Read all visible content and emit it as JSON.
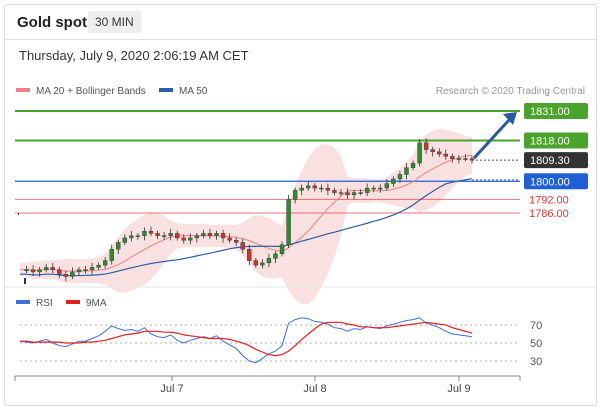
{
  "header": {
    "title": "Gold spot",
    "timeframe": "30 MIN"
  },
  "timestamp": "Thursday, July 9, 2020 2:06:19 AM CET",
  "chart_data": [
    {
      "type": "candlestick",
      "legend": [
        {
          "label": "MA 20 + Bollinger Bands",
          "color": "#f08080"
        },
        {
          "label": "MA 50",
          "color": "#2b5ea7"
        }
      ],
      "attribution": "Research © 2020 Trading Central",
      "levels": [
        {
          "label": "1831.00",
          "value": 1831.0,
          "color": "#4aa32a",
          "kind": "resistance"
        },
        {
          "label": "1818.00",
          "value": 1818.0,
          "color": "#4aa32a",
          "kind": "resistance"
        },
        {
          "label": "1809.30",
          "value": 1809.3,
          "color": "#333333",
          "kind": "last-price"
        },
        {
          "label": "1800.00",
          "value": 1800.0,
          "color": "#1f5fd6",
          "kind": "pivot"
        },
        {
          "label": "1792.00",
          "value": 1792.0,
          "color": "#d93a3a",
          "kind": "support"
        },
        {
          "label": "1786.00",
          "value": 1786.0,
          "color": "#d93a3a",
          "kind": "support"
        }
      ],
      "price_path": [
        1761,
        1761,
        1760,
        1761,
        1762,
        1761,
        1759,
        1758,
        1760,
        1761,
        1761,
        1762,
        1763,
        1765,
        1770,
        1773,
        1775,
        1776,
        1776,
        1778,
        1777,
        1776,
        1776,
        1777,
        1775,
        1774,
        1775,
        1776,
        1777,
        1776,
        1777,
        1775,
        1774,
        1773,
        1770,
        1765,
        1763,
        1764,
        1766,
        1768,
        1772,
        1792,
        1796,
        1797,
        1798,
        1797,
        1797,
        1796,
        1795,
        1795,
        1794,
        1795,
        1795,
        1797,
        1797,
        1797,
        1799,
        1801,
        1803,
        1806,
        1808,
        1817,
        1814,
        1813,
        1812,
        1811,
        1810,
        1810,
        1810,
        1809.3
      ],
      "projection": {
        "from": 1809.3,
        "to": 1831.0
      },
      "x_ticks": [
        "Jul 7",
        "Jul 8",
        "Jul 9"
      ]
    },
    {
      "type": "line",
      "legend": [
        {
          "label": "RSI",
          "color": "#3f6fd8"
        },
        {
          "label": "9MA",
          "color": "#e02020"
        }
      ],
      "y_ticks": [
        "70",
        "50",
        "30"
      ],
      "ylim": [
        20,
        85
      ],
      "rsi": [
        52,
        51,
        50,
        52,
        54,
        50,
        47,
        46,
        49,
        52,
        52,
        55,
        58,
        63,
        69,
        66,
        64,
        65,
        63,
        67,
        60,
        57,
        56,
        59,
        53,
        50,
        53,
        55,
        57,
        55,
        58,
        52,
        48,
        44,
        36,
        30,
        28,
        33,
        38,
        41,
        47,
        72,
        76,
        78,
        77,
        74,
        73,
        71,
        67,
        66,
        63,
        66,
        65,
        68,
        67,
        66,
        69,
        71,
        73,
        75,
        76,
        78,
        72,
        70,
        67,
        63,
        60,
        59,
        58,
        57
      ],
      "ma9": [
        52,
        52,
        51,
        51,
        51,
        51,
        51,
        50,
        50,
        50,
        51,
        51,
        52,
        53,
        55,
        57,
        59,
        60,
        61,
        63,
        63,
        63,
        62,
        62,
        61,
        59,
        58,
        57,
        56,
        55,
        55,
        55,
        54,
        52,
        50,
        47,
        43,
        40,
        37,
        36,
        37,
        41,
        47,
        54,
        60,
        66,
        71,
        73,
        73,
        73,
        71,
        70,
        68,
        68,
        67,
        67,
        67,
        68,
        69,
        70,
        71,
        72,
        73,
        72,
        71,
        70,
        67,
        65,
        63,
        61
      ]
    }
  ]
}
